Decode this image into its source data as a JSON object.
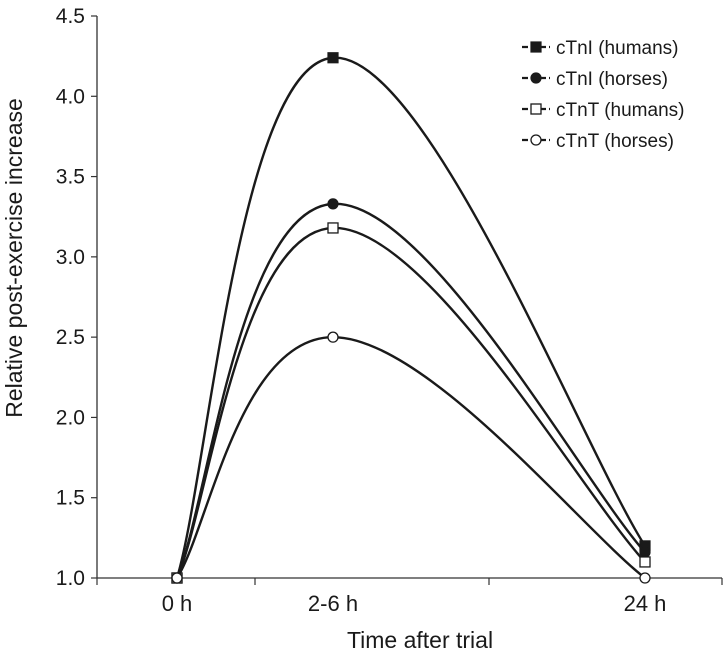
{
  "chart_data": {
    "type": "line",
    "title": "",
    "xlabel": "Time after trial",
    "ylabel": "Relative post-exercise increase",
    "categories": [
      "0 h",
      "2-6 h",
      "24 h"
    ],
    "ylim": [
      1.0,
      4.5
    ],
    "yticks": [
      "1.0",
      "1.5",
      "2.0",
      "2.5",
      "3.0",
      "3.5",
      "4.0",
      "4.5"
    ],
    "grid": false,
    "legend_position": "top-right",
    "series": [
      {
        "name": "cTnI (humans)",
        "marker": "filled-square",
        "values": [
          1.0,
          4.24,
          1.2
        ]
      },
      {
        "name": "cTnI (horses)",
        "marker": "filled-circle",
        "values": [
          1.0,
          3.33,
          1.16
        ]
      },
      {
        "name": "cTnT (humans)",
        "marker": "open-square",
        "values": [
          1.0,
          3.18,
          1.1
        ]
      },
      {
        "name": "cTnT (horses)",
        "marker": "open-circle",
        "values": [
          1.0,
          2.5,
          1.0
        ]
      }
    ],
    "colors": {
      "line": "#1a1a1a",
      "axis": "#333333",
      "background": "#ffffff"
    }
  }
}
